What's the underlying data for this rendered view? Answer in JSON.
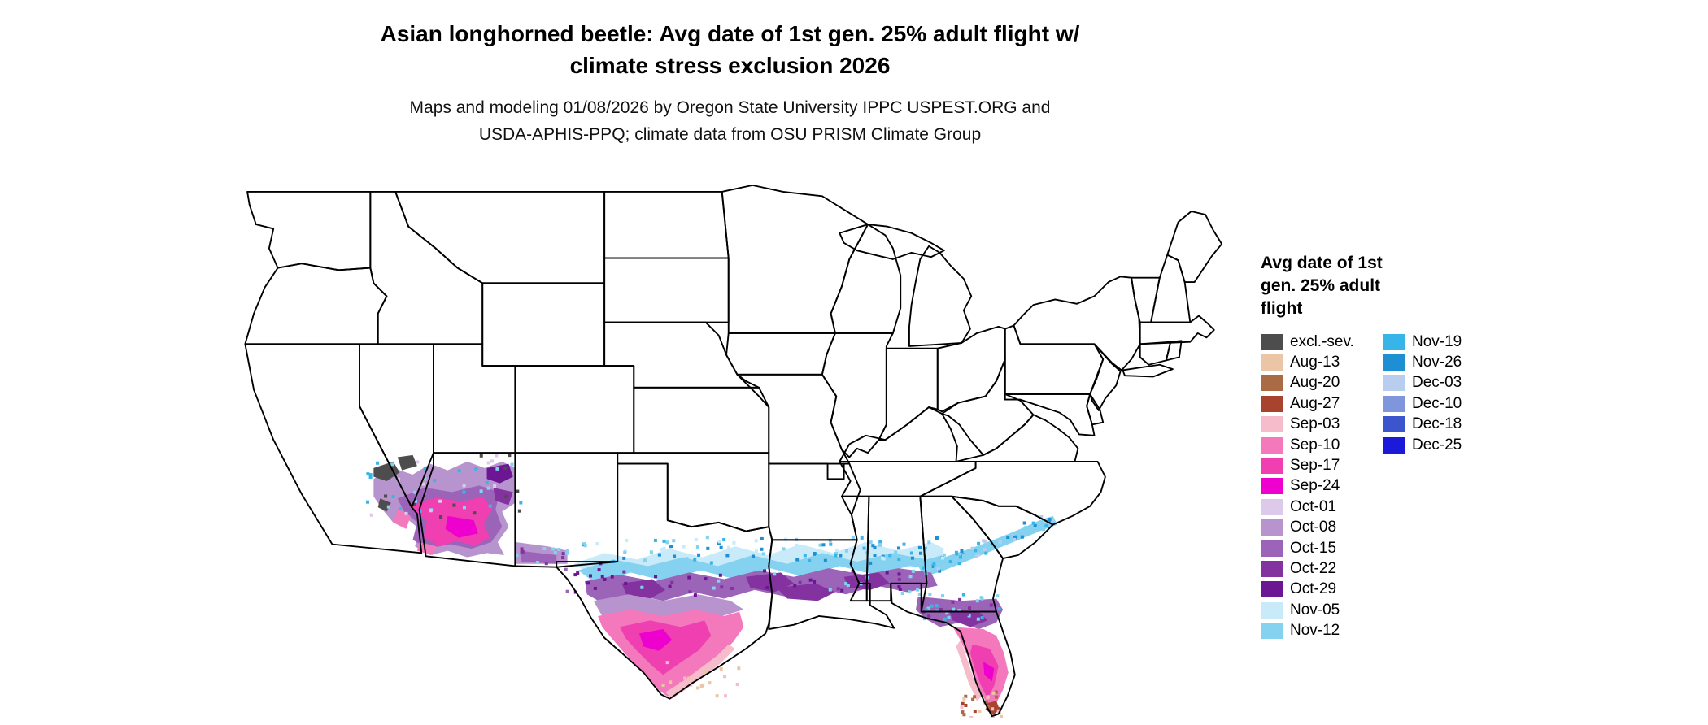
{
  "header": {
    "title_line1": "Asian longhorned beetle: Avg date of 1st gen. 25% adult flight w/",
    "title_line2": "climate stress exclusion 2026",
    "subtitle_line1": "Maps and modeling 01/08/2026 by Oregon State University IPPC USPEST.ORG and",
    "subtitle_line2": "USDA-APHIS-PPQ; climate data from OSU PRISM Climate Group"
  },
  "legend": {
    "title_line1": "Avg date of 1st",
    "title_line2": "gen. 25% adult",
    "title_line3": "flight",
    "column1": [
      {
        "label": "excl.-sev.",
        "color": "#4d4d4d"
      },
      {
        "label": "Aug-13",
        "color": "#eac6a6"
      },
      {
        "label": "Aug-20",
        "color": "#aa6b44"
      },
      {
        "label": "Aug-27",
        "color": "#a8442e"
      },
      {
        "label": "Sep-03",
        "color": "#f6bccb"
      },
      {
        "label": "Sep-10",
        "color": "#f478bc"
      },
      {
        "label": "Sep-17",
        "color": "#ef3fb0"
      },
      {
        "label": "Sep-24",
        "color": "#ee00cf"
      },
      {
        "label": "Oct-01",
        "color": "#ddc9e9"
      },
      {
        "label": "Oct-08",
        "color": "#b794cd"
      },
      {
        "label": "Oct-15",
        "color": "#9c64b8"
      },
      {
        "label": "Oct-22",
        "color": "#83329f"
      },
      {
        "label": "Oct-29",
        "color": "#6c1694"
      },
      {
        "label": "Nov-05",
        "color": "#c9ebf9"
      },
      {
        "label": "Nov-12",
        "color": "#85d2f0"
      }
    ],
    "column2": [
      {
        "label": "Nov-19",
        "color": "#38b5e8"
      },
      {
        "label": "Nov-26",
        "color": "#1d8fd2"
      },
      {
        "label": "Dec-03",
        "color": "#b9cdee"
      },
      {
        "label": "Dec-10",
        "color": "#7f96dc"
      },
      {
        "label": "Dec-18",
        "color": "#3c55cd"
      },
      {
        "label": "Dec-25",
        "color": "#1a1ad8"
      }
    ]
  }
}
